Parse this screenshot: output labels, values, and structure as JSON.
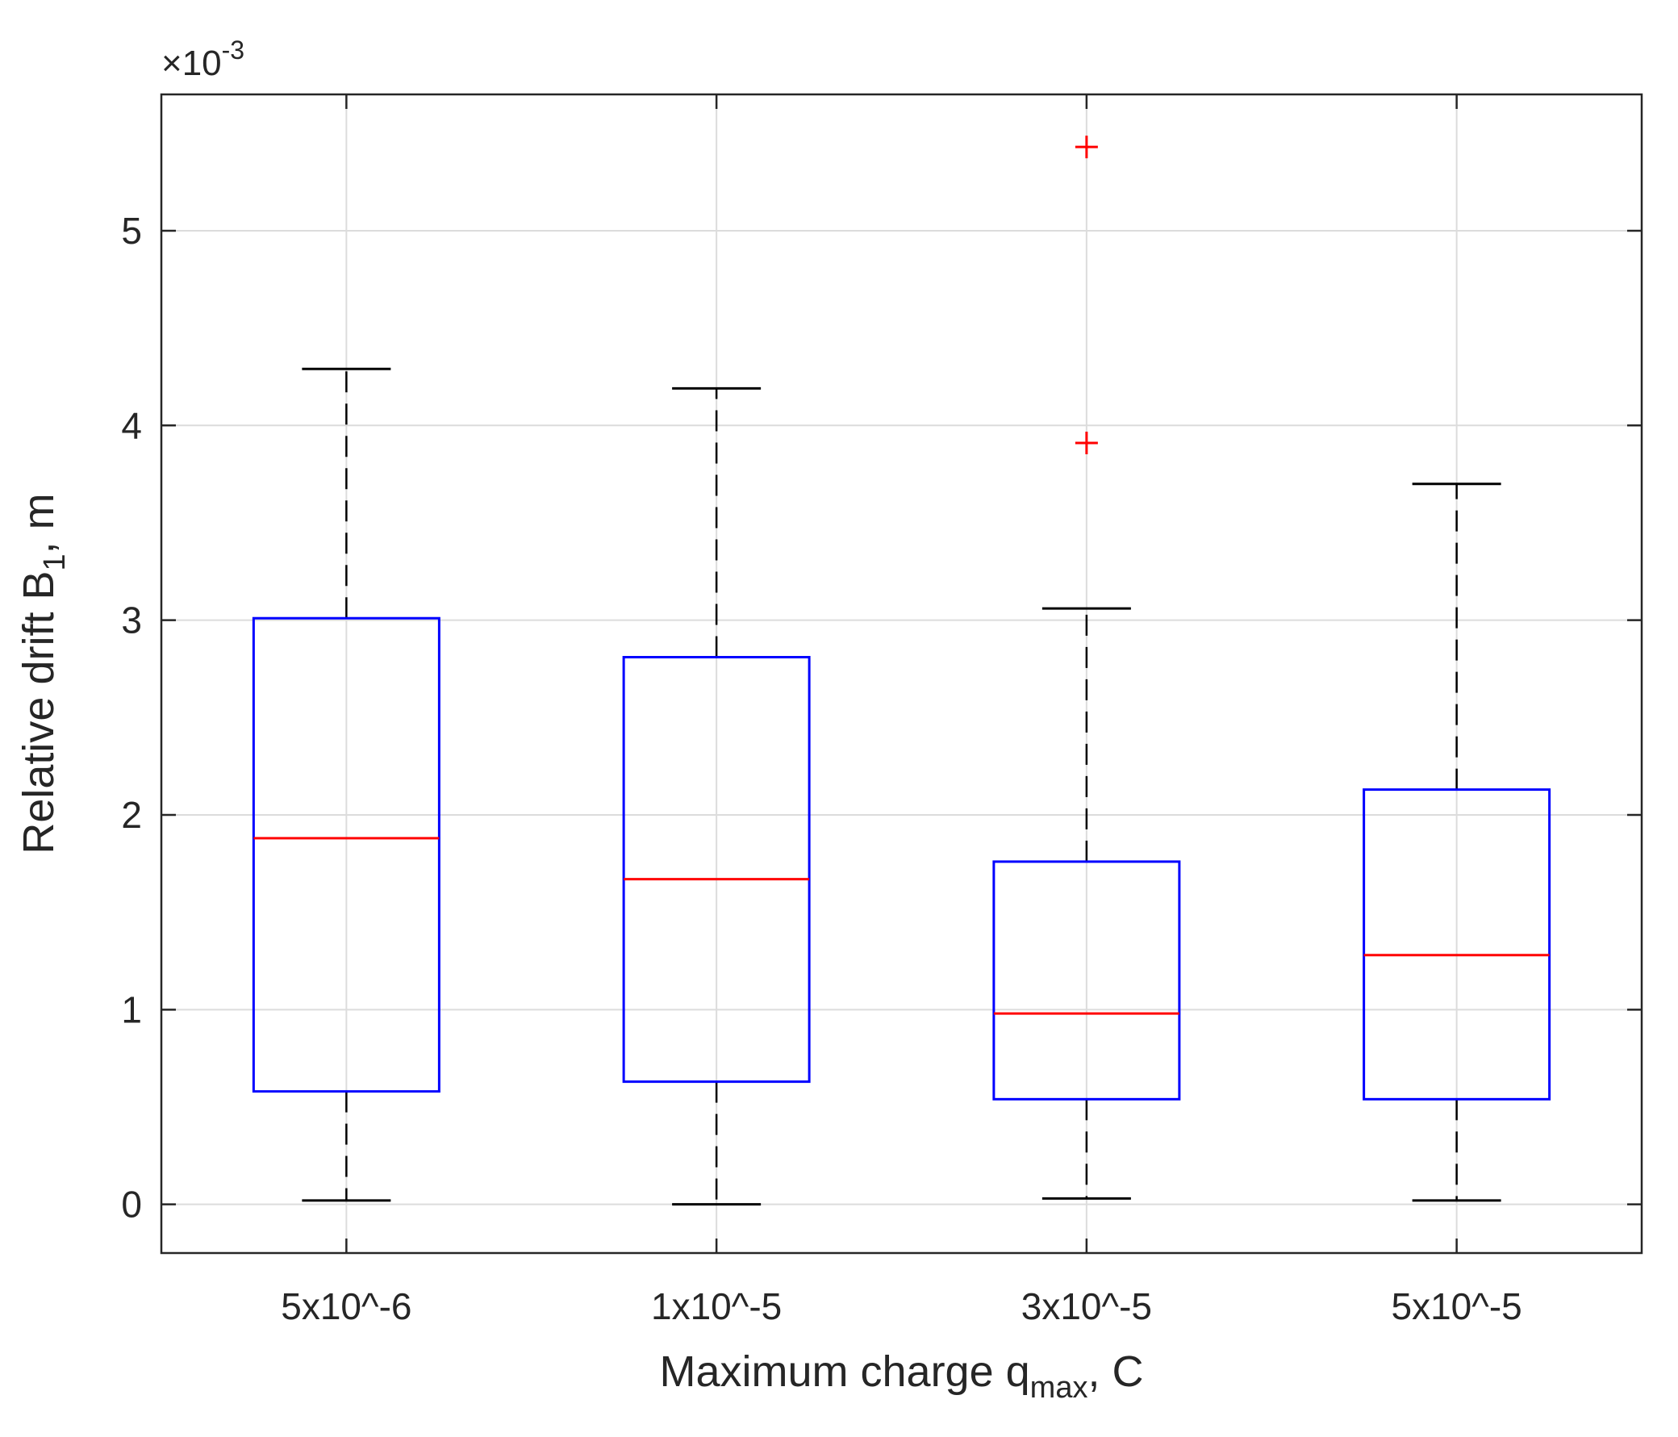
{
  "chart_data": {
    "type": "boxplot",
    "title": "",
    "xlabel": {
      "main": "Maximum charge q",
      "subscript": "max",
      "suffix": ", C"
    },
    "ylabel": {
      "main": "Relative drift B",
      "subscript": "1",
      "suffix": ", m"
    },
    "y_multiplier": {
      "base": "×10",
      "exponent": "-3"
    },
    "categories": [
      "5x10^-6",
      "1x10^-5",
      "3x10^-5",
      "5x10^-5"
    ],
    "yticks": [
      0,
      1,
      2,
      3,
      4,
      5
    ],
    "ylim": [
      -0.25,
      5.7
    ],
    "grid": true,
    "boxes": [
      {
        "category": "5x10^-6",
        "whisker_low": 0.02,
        "q1": 0.58,
        "median": 1.88,
        "q3": 3.01,
        "whisker_high": 4.29,
        "outliers": []
      },
      {
        "category": "1x10^-5",
        "whisker_low": 0.0,
        "q1": 0.63,
        "median": 1.67,
        "q3": 2.81,
        "whisker_high": 4.19,
        "outliers": []
      },
      {
        "category": "3x10^-5",
        "whisker_low": 0.03,
        "q1": 0.54,
        "median": 0.98,
        "q3": 1.76,
        "whisker_high": 3.06,
        "outliers": [
          3.91,
          5.43
        ]
      },
      {
        "category": "5x10^-5",
        "whisker_low": 0.02,
        "q1": 0.54,
        "median": 1.28,
        "q3": 2.13,
        "whisker_high": 3.7,
        "outliers": []
      }
    ],
    "colors": {
      "box": "#0000ff",
      "median": "#ff0000",
      "whisker": "#000000",
      "outlier": "#ff0000",
      "grid": "#dcdcdc",
      "axis": "#262626"
    }
  }
}
